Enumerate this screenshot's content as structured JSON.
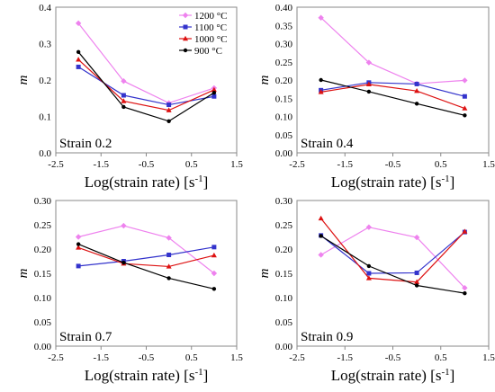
{
  "chart_data": [
    {
      "type": "line",
      "annotation": "Strain 0.2",
      "xlabel": "Log(strain rate) [s",
      "xlabel_sup": "-1",
      "xlabel_end": "]",
      "ylabel": "m",
      "xlim": [
        -2.5,
        1.5
      ],
      "ylim": [
        0,
        0.4
      ],
      "xticks": [
        "-2.5",
        "-1.5",
        "-0.5",
        "0.5",
        "1.5"
      ],
      "yticks": [
        "0.0",
        "0.1",
        "0.2",
        "0.3",
        "0.4"
      ],
      "legend": {
        "position": "top-right"
      },
      "x": [
        -2,
        -1,
        0,
        1
      ],
      "series": [
        {
          "name": "1200 °C",
          "color": "#ee82ee",
          "marker": "diamond",
          "values": [
            0.356,
            0.197,
            0.137,
            0.178
          ]
        },
        {
          "name": "1100 °C",
          "color": "#3333cc",
          "marker": "square",
          "values": [
            0.236,
            0.158,
            0.132,
            0.155
          ]
        },
        {
          "name": "1000 °C",
          "color": "#dd1111",
          "marker": "triangle",
          "values": [
            0.256,
            0.142,
            0.117,
            0.173
          ]
        },
        {
          "name": "900 °C",
          "color": "#000000",
          "marker": "circle",
          "values": [
            0.277,
            0.126,
            0.087,
            0.165
          ]
        }
      ]
    },
    {
      "type": "line",
      "annotation": "Strain 0.4",
      "xlabel": "Log(strain rate) [s",
      "xlabel_sup": "-1",
      "xlabel_end": "]",
      "ylabel": "m",
      "xlim": [
        -2.5,
        1.5
      ],
      "ylim": [
        0,
        0.4
      ],
      "xticks": [
        "-2.5",
        "-1.5",
        "-0.5",
        "0.5",
        "1.5"
      ],
      "yticks": [
        "0.00",
        "0.05",
        "0.10",
        "0.15",
        "0.20",
        "0.25",
        "0.30",
        "0.35",
        "0.40"
      ],
      "x": [
        -2,
        -1,
        0,
        1
      ],
      "series": [
        {
          "name": "1200 °C",
          "color": "#ee82ee",
          "marker": "diamond",
          "values": [
            0.371,
            0.248,
            0.19,
            0.199
          ]
        },
        {
          "name": "1100 °C",
          "color": "#3333cc",
          "marker": "square",
          "values": [
            0.172,
            0.193,
            0.189,
            0.155
          ]
        },
        {
          "name": "1000 °C",
          "color": "#dd1111",
          "marker": "triangle",
          "values": [
            0.167,
            0.188,
            0.17,
            0.122
          ]
        },
        {
          "name": "900 °C",
          "color": "#000000",
          "marker": "circle",
          "values": [
            0.2,
            0.168,
            0.135,
            0.103
          ]
        }
      ]
    },
    {
      "type": "line",
      "annotation": "Strain 0.7",
      "xlabel": "Log(strain rate) [s",
      "xlabel_sup": "-1",
      "xlabel_end": "]",
      "ylabel": "m",
      "xlim": [
        -2.5,
        1.5
      ],
      "ylim": [
        0,
        0.3
      ],
      "xticks": [
        "-2.5",
        "-1.5",
        "-0.5",
        "0.5",
        "1.5"
      ],
      "yticks": [
        "0.00",
        "0.05",
        "0.10",
        "0.15",
        "0.20",
        "0.25",
        "0.30"
      ],
      "x": [
        -2,
        -1,
        0,
        1
      ],
      "series": [
        {
          "name": "1200 °C",
          "color": "#ee82ee",
          "marker": "diamond",
          "values": [
            0.225,
            0.248,
            0.223,
            0.15
          ]
        },
        {
          "name": "1100 °C",
          "color": "#3333cc",
          "marker": "square",
          "values": [
            0.165,
            0.175,
            0.188,
            0.204
          ]
        },
        {
          "name": "1000 °C",
          "color": "#dd1111",
          "marker": "triangle",
          "values": [
            0.203,
            0.17,
            0.164,
            0.187
          ]
        },
        {
          "name": "900 °C",
          "color": "#000000",
          "marker": "circle",
          "values": [
            0.21,
            0.172,
            0.14,
            0.118
          ]
        }
      ]
    },
    {
      "type": "line",
      "annotation": "Strain 0.9",
      "xlabel": "Log(strain rate) [s",
      "xlabel_sup": "-1",
      "xlabel_end": "]",
      "ylabel": "m",
      "xlim": [
        -2.5,
        1.5
      ],
      "ylim": [
        0,
        0.3
      ],
      "xticks": [
        "-2.5",
        "-1.5",
        "-0.5",
        "0.5",
        "1.5"
      ],
      "yticks": [
        "0.00",
        "0.05",
        "0.10",
        "0.15",
        "0.20",
        "0.25",
        "0.30"
      ],
      "x": [
        -2,
        -1,
        0,
        1
      ],
      "series": [
        {
          "name": "1200 °C",
          "color": "#ee82ee",
          "marker": "diamond",
          "values": [
            0.188,
            0.245,
            0.224,
            0.12
          ]
        },
        {
          "name": "1100 °C",
          "color": "#3333cc",
          "marker": "square",
          "values": [
            0.228,
            0.15,
            0.151,
            0.235
          ]
        },
        {
          "name": "1000 °C",
          "color": "#dd1111",
          "marker": "triangle",
          "values": [
            0.263,
            0.14,
            0.132,
            0.236
          ]
        },
        {
          "name": "900 °C",
          "color": "#000000",
          "marker": "circle",
          "values": [
            0.227,
            0.165,
            0.125,
            0.109
          ]
        }
      ]
    }
  ]
}
